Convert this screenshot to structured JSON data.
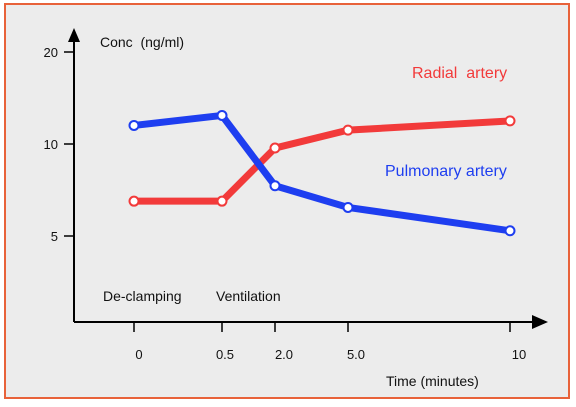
{
  "chart_data": {
    "type": "line",
    "ylabel": "Conc  (ng/ml)",
    "xlabel": "Time (minutes)",
    "x_tick_labels": [
      "0",
      "0.5",
      "2.0",
      "5.0",
      "10"
    ],
    "y_tick_labels": [
      "20",
      "10",
      "5"
    ],
    "y_scale": "log",
    "annotations": [
      "De-clamping",
      "Ventilation"
    ],
    "series": [
      {
        "name": "Radial  artery",
        "color": "#f23a3a",
        "x": [
          "0",
          "0.5",
          "2.0",
          "5.0",
          "10"
        ],
        "values": [
          6.5,
          6.5,
          9.7,
          11.1,
          11.9
        ]
      },
      {
        "name": "Pulmonary artery",
        "color": "#1e3ef0",
        "x": [
          "0",
          "0.5",
          "2.0",
          "5.0",
          "10"
        ],
        "values": [
          11.5,
          12.4,
          7.3,
          6.2,
          5.2
        ]
      }
    ],
    "grid": false,
    "legend": "inline labels on right"
  },
  "colors": {
    "frame_border": "#e8623a",
    "background": "#ececec"
  }
}
